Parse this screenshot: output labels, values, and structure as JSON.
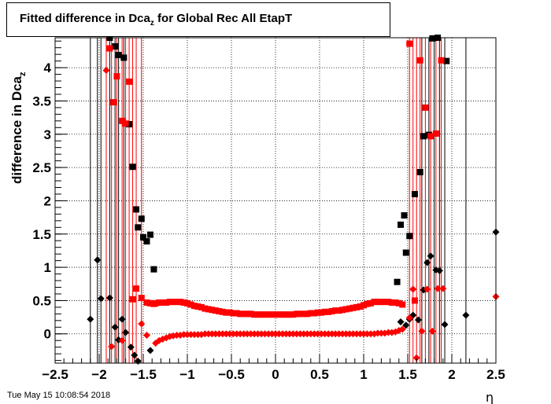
{
  "title": {
    "prefix": "Fitted difference in Dca",
    "subscript": "z",
    "suffix": " for Global Rec All EtapT"
  },
  "timestamp": "Tue May 15 10:08:54 2018",
  "chart_data": {
    "type": "scatter",
    "title": "Fitted difference in Dca_z for Global Rec All EtapT",
    "xlabel": "η",
    "ylabel": "difference in Dca_z",
    "xlim": [
      -2.5,
      2.5
    ],
    "ylim": [
      -0.44,
      4.45
    ],
    "x_ticks": [
      -2.5,
      -2,
      -1.5,
      -1,
      -0.5,
      0,
      0.5,
      1,
      1.5,
      2,
      2.5
    ],
    "x_tick_labels": [
      "−2.5",
      "−2",
      "−1.5",
      "−1",
      "−0.5",
      "0",
      "0.5",
      "1",
      "1.5",
      "2",
      "2.5"
    ],
    "y_ticks": [
      0,
      0.5,
      1,
      1.5,
      2,
      2.5,
      3,
      3.5,
      4
    ],
    "y_tick_labels": [
      "0",
      "0.5",
      "1",
      "1.5",
      "2",
      "2.5",
      "3",
      "3.5",
      "4"
    ],
    "grid": true,
    "series": [
      {
        "marker": "square",
        "color": "#000000",
        "x": [
          -1.88,
          -1.82,
          -1.78,
          -1.72,
          -1.66,
          -1.62,
          -1.58,
          -1.56,
          -1.52,
          -1.5,
          -1.46,
          -1.42,
          -1.38,
          1.38,
          1.42,
          1.46,
          1.48,
          1.52,
          1.58,
          1.64,
          1.68,
          1.74,
          1.78,
          1.84,
          1.94
        ],
        "y": [
          4.45,
          4.32,
          4.19,
          4.15,
          3.15,
          2.51,
          1.87,
          1.6,
          1.73,
          1.45,
          1.39,
          1.49,
          0.97,
          0.78,
          1.64,
          1.78,
          1.22,
          1.47,
          2.1,
          2.43,
          2.97,
          2.99,
          4.44,
          4.45,
          4.1
        ]
      },
      {
        "marker": "square",
        "color": "#ff0000",
        "x": [
          -1.88,
          -1.84,
          -1.8,
          -1.74,
          -1.7,
          -1.66,
          -1.62,
          -1.58,
          -1.52,
          -1.46,
          -1.42,
          -1.38,
          1.52,
          1.58,
          1.64,
          1.7,
          1.76,
          1.82,
          1.88
        ],
        "y": [
          4.29,
          3.48,
          3.87,
          3.2,
          3.16,
          3.79,
          0.52,
          0.68,
          0.54,
          0.47,
          0.46,
          0.45,
          4.36,
          0.5,
          4.11,
          3.4,
          2.97,
          3.01,
          4.11
        ]
      },
      {
        "marker": "diamond",
        "color": "#000000",
        "x": [
          -2.1,
          -2.02,
          -1.98,
          -1.88,
          -1.82,
          -1.78,
          -1.74,
          -1.7,
          -1.64,
          -1.6,
          -1.56,
          -1.42,
          1.42,
          1.48,
          1.52,
          1.56,
          1.62,
          1.68,
          1.72,
          1.76,
          1.82,
          1.86,
          1.92,
          2.16,
          2.5
        ],
        "y": [
          0.22,
          1.11,
          0.53,
          0.54,
          0.1,
          -0.09,
          0.22,
          0.02,
          -0.2,
          -0.32,
          -0.41,
          -0.25,
          0.18,
          0.13,
          0.22,
          0.28,
          0.21,
          0.66,
          1.07,
          1.17,
          0.96,
          0.95,
          0.14,
          0.28,
          1.53
        ]
      },
      {
        "marker": "diamond",
        "color": "#ff0000",
        "x": [
          -1.92,
          -1.86,
          -1.74,
          -1.52,
          -1.46,
          1.52,
          1.56,
          1.6,
          1.66,
          1.72,
          1.78,
          1.84,
          1.9,
          2.5
        ],
        "y": [
          3.96,
          -0.19,
          -0.1,
          0.15,
          -0.02,
          0.24,
          0.67,
          -0.36,
          0.04,
          0.67,
          0.04,
          0.68,
          0.68,
          0.56
        ]
      },
      {
        "marker": "square",
        "color": "#ff0000",
        "x": [
          -1.36,
          -1.32,
          -1.28,
          -1.24,
          -1.2,
          -1.16,
          -1.12,
          -1.08,
          -1.04,
          -1.0,
          -0.96,
          -0.92,
          -0.88,
          -0.84,
          -0.8,
          -0.76,
          -0.72,
          -0.68,
          -0.64,
          -0.6,
          -0.56,
          -0.52,
          -0.48,
          -0.44,
          -0.4,
          -0.36,
          -0.32,
          -0.28,
          -0.24,
          -0.2,
          -0.16,
          -0.12,
          -0.08,
          -0.04,
          0.0,
          0.04,
          0.08,
          0.12,
          0.16,
          0.2,
          0.24,
          0.28,
          0.32,
          0.36,
          0.4,
          0.44,
          0.48,
          0.52,
          0.56,
          0.6,
          0.64,
          0.68,
          0.72,
          0.76,
          0.8,
          0.84,
          0.88,
          0.92,
          0.96,
          1.0,
          1.04,
          1.08,
          1.12,
          1.16,
          1.2,
          1.24,
          1.28,
          1.32,
          1.36,
          1.4,
          1.44
        ],
        "y": [
          0.46,
          0.47,
          0.47,
          0.47,
          0.48,
          0.48,
          0.48,
          0.48,
          0.47,
          0.46,
          0.44,
          0.42,
          0.41,
          0.4,
          0.38,
          0.37,
          0.36,
          0.35,
          0.34,
          0.33,
          0.32,
          0.32,
          0.31,
          0.31,
          0.3,
          0.3,
          0.3,
          0.3,
          0.29,
          0.29,
          0.29,
          0.29,
          0.29,
          0.29,
          0.29,
          0.29,
          0.29,
          0.29,
          0.29,
          0.29,
          0.3,
          0.3,
          0.3,
          0.3,
          0.31,
          0.31,
          0.32,
          0.32,
          0.33,
          0.33,
          0.34,
          0.35,
          0.35,
          0.36,
          0.37,
          0.38,
          0.39,
          0.4,
          0.41,
          0.43,
          0.45,
          0.46,
          0.48,
          0.48,
          0.48,
          0.48,
          0.48,
          0.47,
          0.47,
          0.46,
          0.44
        ]
      },
      {
        "marker": "diamond",
        "color": "#ff0000",
        "x": [
          -1.36,
          -1.32,
          -1.28,
          -1.24,
          -1.2,
          -1.16,
          -1.12,
          -1.08,
          -1.04,
          -1.0,
          -0.96,
          -0.92,
          -0.88,
          -0.84,
          -0.8,
          -0.76,
          -0.72,
          -0.68,
          -0.64,
          -0.6,
          -0.56,
          -0.52,
          -0.48,
          -0.44,
          -0.4,
          -0.36,
          -0.32,
          -0.28,
          -0.24,
          -0.2,
          -0.16,
          -0.12,
          -0.08,
          -0.04,
          0.0,
          0.04,
          0.08,
          0.12,
          0.16,
          0.2,
          0.24,
          0.28,
          0.32,
          0.36,
          0.4,
          0.44,
          0.48,
          0.52,
          0.56,
          0.6,
          0.64,
          0.68,
          0.72,
          0.76,
          0.8,
          0.84,
          0.88,
          0.92,
          0.96,
          1.0,
          1.04,
          1.08,
          1.12,
          1.16,
          1.2,
          1.24,
          1.28,
          1.32,
          1.36,
          1.4,
          1.44
        ],
        "y": [
          -0.14,
          -0.1,
          -0.08,
          -0.06,
          -0.04,
          -0.03,
          -0.02,
          -0.02,
          -0.01,
          -0.01,
          -0.01,
          -0.01,
          -0.01,
          -0.01,
          0.0,
          0.0,
          0.0,
          0.0,
          0.0,
          0.0,
          0.0,
          0.0,
          0.0,
          0.0,
          0.0,
          0.0,
          0.0,
          0.0,
          0.0,
          0.0,
          0.0,
          0.0,
          0.0,
          0.0,
          0.0,
          0.0,
          0.0,
          0.0,
          0.0,
          0.0,
          0.0,
          0.0,
          0.0,
          0.0,
          0.0,
          0.0,
          0.0,
          0.0,
          0.0,
          0.0,
          0.0,
          0.0,
          0.0,
          0.0,
          0.0,
          0.0,
          0.0,
          0.0,
          0.0,
          0.0,
          0.0,
          0.0,
          0.0,
          0.01,
          0.01,
          0.01,
          0.02,
          0.02,
          0.03,
          0.05,
          0.07
        ]
      }
    ],
    "error_bar_lines": [
      {
        "x": -2.1,
        "color": "#000000"
      },
      {
        "x": -2.02,
        "color": "#000000"
      },
      {
        "x": -1.98,
        "color": "#000000"
      },
      {
        "x": -1.92,
        "color": "#ff0000"
      },
      {
        "x": -1.88,
        "color": "#000000"
      },
      {
        "x": -1.86,
        "color": "#ff0000"
      },
      {
        "x": -1.82,
        "color": "#000000"
      },
      {
        "x": -1.8,
        "color": "#ff0000"
      },
      {
        "x": -1.78,
        "color": "#000000"
      },
      {
        "x": -1.74,
        "color": "#ff0000"
      },
      {
        "x": -1.72,
        "color": "#000000"
      },
      {
        "x": -1.7,
        "color": "#ff0000"
      },
      {
        "x": -1.66,
        "color": "#ff0000"
      },
      {
        "x": -1.62,
        "color": "#ff0000"
      },
      {
        "x": -1.58,
        "color": "#ff0000"
      },
      {
        "x": -1.52,
        "color": "#ff0000"
      },
      {
        "x": 1.52,
        "color": "#ff0000"
      },
      {
        "x": 1.56,
        "color": "#ff0000"
      },
      {
        "x": 1.6,
        "color": "#ff0000"
      },
      {
        "x": 1.64,
        "color": "#ff0000"
      },
      {
        "x": 1.66,
        "color": "#000000"
      },
      {
        "x": 1.7,
        "color": "#ff0000"
      },
      {
        "x": 1.74,
        "color": "#000000"
      },
      {
        "x": 1.76,
        "color": "#ff0000"
      },
      {
        "x": 1.8,
        "color": "#000000"
      },
      {
        "x": 1.82,
        "color": "#ff0000"
      },
      {
        "x": 1.86,
        "color": "#000000"
      },
      {
        "x": 1.88,
        "color": "#ff0000"
      },
      {
        "x": 1.92,
        "color": "#000000"
      },
      {
        "x": 2.16,
        "color": "#000000"
      },
      {
        "x": 2.5,
        "color": "#ff0000"
      }
    ]
  }
}
